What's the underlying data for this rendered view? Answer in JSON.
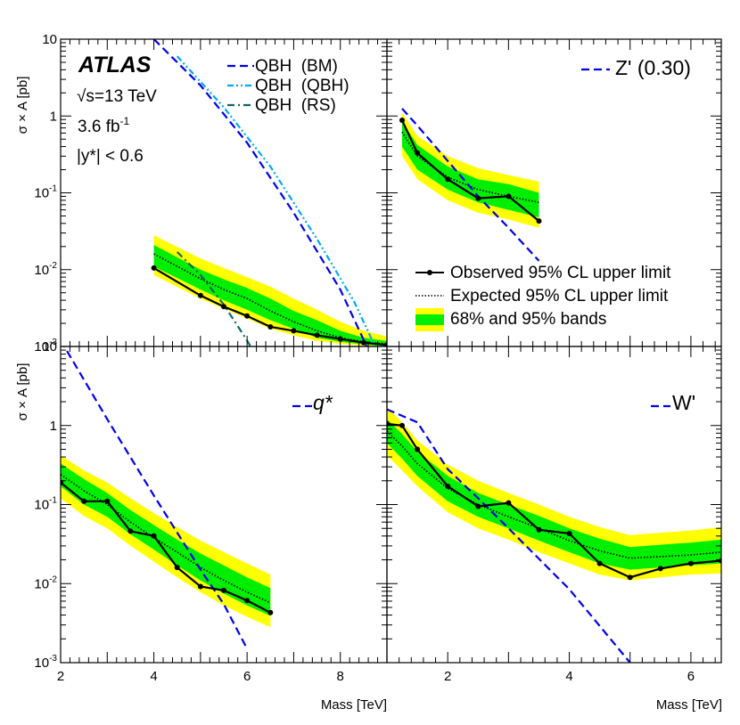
{
  "figure": {
    "experiment": "ATLAS",
    "energy": "√s=13 TeV",
    "lumi_text": "3.6 fb",
    "lumi_exp": "-1",
    "cut": "|y*| < 0.6",
    "y_axis_title": "σ × A [pb]",
    "x_axis_title": "Mass [TeV]"
  },
  "legend_main": {
    "observed": "Observed 95% CL upper limit",
    "expected": "Expected 95% CL upper limit",
    "bands": "68% and 95% bands"
  },
  "colors": {
    "observed": "#000000",
    "band68": "#00ee00",
    "band95": "#ffff00",
    "bm": "#0000ee",
    "qbh": "#00aaee",
    "rs": "#116666",
    "model": "#0000ee"
  },
  "chart_data": [
    {
      "type": "line",
      "panel": "top-left",
      "xlim": [
        2,
        9
      ],
      "ylim": [
        0.001,
        10
      ],
      "yscale": "log",
      "xticks": [],
      "yticks": [
        0.001,
        0.01,
        0.1,
        1,
        10
      ],
      "ytick_labels": [
        "10^-3",
        "10^-2",
        "10^-1",
        "1",
        "10"
      ],
      "x": [
        4,
        5,
        5.5,
        6,
        6.5,
        7,
        7.5,
        8,
        8.5,
        9
      ],
      "observed": [
        0.0105,
        0.0046,
        0.0033,
        0.0025,
        0.0018,
        0.0016,
        0.0014,
        0.00125,
        0.00112,
        0.00105
      ],
      "expected": [
        0.016,
        0.0076,
        0.0055,
        0.0042,
        0.0029,
        0.0021,
        0.0016,
        0.0013,
        0.00115,
        0.00108
      ],
      "band68": {
        "low": [
          0.011,
          0.0055,
          0.004,
          0.003,
          0.0022,
          0.0017,
          0.0013,
          0.00115,
          0.00106,
          0.001
        ],
        "high": [
          0.021,
          0.01,
          0.0075,
          0.0058,
          0.0042,
          0.0029,
          0.0022,
          0.0016,
          0.0013,
          0.00118
        ]
      },
      "band95": {
        "low": [
          0.0085,
          0.0042,
          0.0031,
          0.0023,
          0.0017,
          0.0014,
          0.00118,
          0.00108,
          0.00102,
          0.00098
        ],
        "high": [
          0.028,
          0.014,
          0.0105,
          0.008,
          0.006,
          0.0042,
          0.003,
          0.0021,
          0.0016,
          0.00135
        ]
      },
      "models": [
        {
          "name": "QBH  (BM)",
          "style": "dashed",
          "color": "#0000ee",
          "x": [
            4,
            5,
            6,
            7,
            8,
            8.6
          ],
          "y": [
            10,
            2.5,
            0.45,
            0.055,
            0.0055,
            0.0009
          ]
        },
        {
          "name": "QBH  (QBH)",
          "style": "dash-dot-dot",
          "color": "#00aaee",
          "x": [
            4.5,
            5.5,
            6.5,
            7.5,
            8.3,
            8.8
          ],
          "y": [
            6,
            1.3,
            0.22,
            0.025,
            0.0038,
            0.00085
          ]
        },
        {
          "name": "QBH  (RS)",
          "style": "dash-dot",
          "color": "#116666",
          "x": [
            4.5,
            5,
            5.5,
            6,
            6.25
          ],
          "y": [
            0.017,
            0.0085,
            0.0035,
            0.0012,
            0.00065
          ]
        }
      ]
    },
    {
      "type": "line",
      "panel": "top-right",
      "model_label": "Z' (0.30)",
      "xlim": [
        1,
        6.5
      ],
      "ylim": [
        0.001,
        10
      ],
      "yscale": "log",
      "x": [
        1.25,
        1.5,
        2,
        2.5,
        3,
        3.5
      ],
      "observed": [
        0.88,
        0.33,
        0.15,
        0.085,
        0.09,
        0.043
      ],
      "expected": [
        0.62,
        0.3,
        0.16,
        0.11,
        0.09,
        0.075
      ],
      "band68": {
        "low": [
          0.4,
          0.2,
          0.11,
          0.075,
          0.06,
          0.048
        ],
        "high": [
          0.85,
          0.42,
          0.22,
          0.15,
          0.13,
          0.1
        ]
      },
      "band95": {
        "low": [
          0.3,
          0.15,
          0.08,
          0.055,
          0.045,
          0.035
        ],
        "high": [
          1.1,
          0.55,
          0.3,
          0.21,
          0.17,
          0.14
        ]
      },
      "model": {
        "name": "Z' (0.30)",
        "x": [
          1.25,
          1.5,
          2,
          2.5,
          3,
          3.5
        ],
        "y": [
          1.25,
          0.75,
          0.26,
          0.09,
          0.035,
          0.013
        ]
      },
      "legend": [
        "Observed 95% CL upper limit",
        "Expected 95% CL upper limit",
        "68% and 95% bands"
      ]
    },
    {
      "type": "line",
      "panel": "bottom-left",
      "model_label": "q*",
      "xlim": [
        2,
        9
      ],
      "ylim": [
        0.001,
        10
      ],
      "yscale": "log",
      "xticks": [
        2,
        4,
        6,
        8
      ],
      "xtick_labels": [
        "2",
        "4",
        "6",
        "8"
      ],
      "yticks": [
        0.001,
        0.01,
        0.1,
        1,
        10
      ],
      "ytick_labels": [
        "10^-3",
        "10^-2",
        "10^-1",
        "1",
        "10"
      ],
      "x": [
        2,
        2.5,
        3,
        3.5,
        4,
        4.5,
        5,
        5.5,
        6,
        6.5
      ],
      "observed": [
        0.19,
        0.11,
        0.11,
        0.046,
        0.04,
        0.016,
        0.0092,
        0.0082,
        0.0061,
        0.0043
      ],
      "expected": [
        0.24,
        0.15,
        0.1,
        0.06,
        0.038,
        0.025,
        0.016,
        0.011,
        0.0078,
        0.0057
      ],
      "band68": {
        "low": [
          0.17,
          0.1,
          0.07,
          0.042,
          0.027,
          0.017,
          0.011,
          0.0075,
          0.0053,
          0.0039
        ],
        "high": [
          0.33,
          0.21,
          0.14,
          0.085,
          0.055,
          0.036,
          0.024,
          0.017,
          0.012,
          0.0088
        ]
      },
      "band95": {
        "low": [
          0.12,
          0.072,
          0.05,
          0.03,
          0.019,
          0.012,
          0.0078,
          0.0053,
          0.0038,
          0.0028
        ],
        "high": [
          0.42,
          0.27,
          0.19,
          0.12,
          0.078,
          0.052,
          0.035,
          0.025,
          0.018,
          0.013
        ]
      },
      "model": {
        "name": "q*",
        "x": [
          2,
          3,
          4,
          5,
          5.5,
          6
        ],
        "y": [
          12,
          1.2,
          0.13,
          0.015,
          0.0055,
          0.0015
        ]
      }
    },
    {
      "type": "line",
      "panel": "bottom-right",
      "model_label": "W'",
      "xlim": [
        1,
        6.5
      ],
      "ylim": [
        0.001,
        10
      ],
      "yscale": "log",
      "xticks": [
        2,
        4,
        6
      ],
      "xtick_labels": [
        "2",
        "4",
        "6"
      ],
      "x": [
        1,
        1.25,
        1.5,
        2,
        2.5,
        3,
        3.5,
        4,
        4.5,
        5,
        5.5,
        6,
        6.5
      ],
      "observed": [
        1.05,
        1.0,
        0.5,
        0.17,
        0.095,
        0.105,
        0.048,
        0.043,
        0.018,
        0.012,
        0.0155,
        0.018,
        0.0195
      ],
      "expected": [
        0.85,
        0.55,
        0.33,
        0.16,
        0.1,
        0.07,
        0.05,
        0.035,
        0.026,
        0.021,
        0.022,
        0.023,
        0.025
      ],
      "band68": {
        "low": [
          0.6,
          0.38,
          0.23,
          0.11,
          0.07,
          0.05,
          0.035,
          0.025,
          0.018,
          0.015,
          0.016,
          0.017,
          0.018
        ],
        "high": [
          1.2,
          0.78,
          0.47,
          0.23,
          0.14,
          0.1,
          0.072,
          0.05,
          0.037,
          0.029,
          0.031,
          0.033,
          0.036
        ]
      },
      "band95": {
        "low": [
          0.42,
          0.27,
          0.17,
          0.08,
          0.05,
          0.036,
          0.025,
          0.018,
          0.013,
          0.011,
          0.012,
          0.013,
          0.0135
        ],
        "high": [
          1.7,
          1.1,
          0.65,
          0.32,
          0.2,
          0.14,
          0.1,
          0.07,
          0.052,
          0.041,
          0.044,
          0.047,
          0.052
        ]
      },
      "model": {
        "name": "W'",
        "x": [
          1,
          1.5,
          2,
          2.5,
          3,
          4,
          5
        ],
        "y": [
          1.6,
          1.1,
          0.28,
          0.12,
          0.05,
          0.0085,
          0.001
        ]
      }
    }
  ]
}
